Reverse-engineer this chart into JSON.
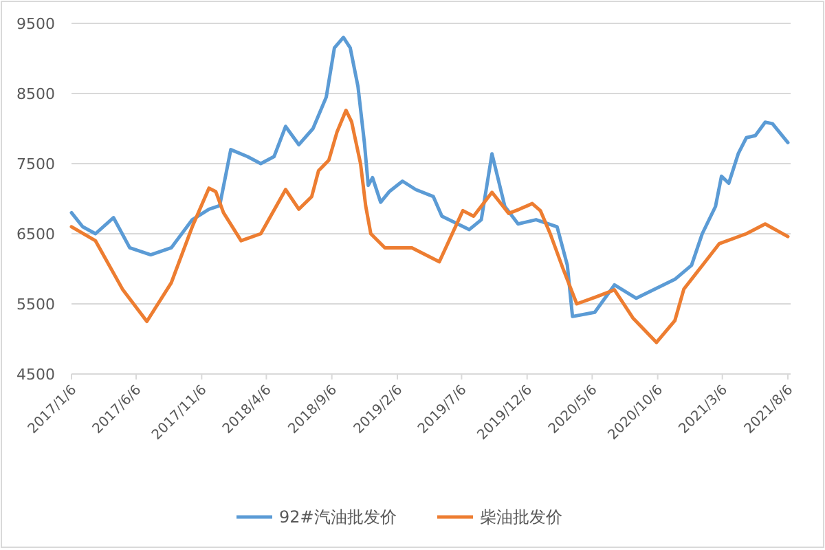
{
  "chart_data": {
    "type": "line",
    "ylim": [
      4500,
      9500
    ],
    "yticks": [
      4500,
      5500,
      6500,
      7500,
      8500,
      9500
    ],
    "xlim": [
      "2017-01-06",
      "2021-08-06"
    ],
    "xticks": [
      {
        "value": "2017-01-06",
        "label": "2017/1/6"
      },
      {
        "value": "2017-06-06",
        "label": "2017/6/6"
      },
      {
        "value": "2017-11-06",
        "label": "2017/11/6"
      },
      {
        "value": "2018-04-06",
        "label": "2018/4/6"
      },
      {
        "value": "2018-09-06",
        "label": "2018/9/6"
      },
      {
        "value": "2019-02-06",
        "label": "2019/2/6"
      },
      {
        "value": "2019-07-06",
        "label": "2019/7/6"
      },
      {
        "value": "2019-12-06",
        "label": "2019/12/6"
      },
      {
        "value": "2020-05-06",
        "label": "2020/5/6"
      },
      {
        "value": "2020-10-06",
        "label": "2020/10/6"
      },
      {
        "value": "2021-03-06",
        "label": "2021/3/6"
      },
      {
        "value": "2021-08-06",
        "label": "2021/8/6"
      }
    ],
    "grid": "y",
    "legend": "bottom",
    "series": [
      {
        "name": "92#汽油批发价",
        "color": "#5b9bd5",
        "x": [
          "2017-01-06",
          "2017-02-01",
          "2017-03-03",
          "2017-04-14",
          "2017-05-22",
          "2017-07-10",
          "2017-08-27",
          "2017-10-15",
          "2017-11-23",
          "2017-12-18",
          "2018-01-13",
          "2018-02-21",
          "2018-03-24",
          "2018-04-24",
          "2018-05-21",
          "2018-06-21",
          "2018-07-24",
          "2018-08-24",
          "2018-09-12",
          "2018-10-03",
          "2018-10-19",
          "2018-11-06",
          "2018-11-21",
          "2018-11-30",
          "2018-12-10",
          "2018-12-29",
          "2019-01-18",
          "2019-02-18",
          "2019-03-21",
          "2019-05-01",
          "2019-05-21",
          "2019-06-27",
          "2019-07-24",
          "2019-08-21",
          "2019-09-15",
          "2019-10-15",
          "2019-11-15",
          "2019-12-27",
          "2020-02-14",
          "2020-03-09",
          "2020-03-21",
          "2020-05-12",
          "2020-06-27",
          "2020-08-17",
          "2020-11-15",
          "2020-12-24",
          "2021-01-18",
          "2021-02-18",
          "2021-03-04",
          "2021-03-21",
          "2021-04-12",
          "2021-05-01",
          "2021-05-22",
          "2021-06-14",
          "2021-07-01",
          "2021-07-17",
          "2021-08-06"
        ],
        "values": [
          6800,
          6600,
          6500,
          6730,
          6300,
          6200,
          6300,
          6700,
          6850,
          6900,
          7700,
          7600,
          7500,
          7600,
          8030,
          7770,
          8000,
          8450,
          9150,
          9300,
          9150,
          8600,
          7800,
          7190,
          7300,
          6950,
          7100,
          7250,
          7130,
          7030,
          6750,
          6640,
          6560,
          6700,
          7640,
          6890,
          6640,
          6700,
          6600,
          6050,
          5320,
          5380,
          5770,
          5580,
          5850,
          6050,
          6500,
          6890,
          7320,
          7220,
          7640,
          7870,
          7900,
          8090,
          8070,
          7950,
          7800
        ]
      },
      {
        "name": "柴油批发价",
        "color": "#ed7d31",
        "x": [
          "2017-01-06",
          "2017-03-03",
          "2017-05-06",
          "2017-07-01",
          "2017-08-27",
          "2017-10-15",
          "2017-11-23",
          "2017-12-09",
          "2017-12-27",
          "2018-02-06",
          "2018-03-24",
          "2018-05-21",
          "2018-06-21",
          "2018-07-21",
          "2018-08-06",
          "2018-08-30",
          "2018-09-18",
          "2018-10-09",
          "2018-10-22",
          "2018-11-12",
          "2018-11-24",
          "2018-12-06",
          "2019-01-08",
          "2019-03-12",
          "2019-05-15",
          "2019-07-09",
          "2019-08-03",
          "2019-09-15",
          "2019-10-24",
          "2019-11-18",
          "2019-12-18",
          "2020-01-06",
          "2020-01-29",
          "2020-02-28",
          "2020-03-31",
          "2020-05-15",
          "2020-06-27",
          "2020-08-09",
          "2020-10-03",
          "2020-11-15",
          "2020-12-06",
          "2021-02-27",
          "2021-05-01",
          "2021-06-14",
          "2021-08-06"
        ],
        "values": [
          6600,
          6400,
          5700,
          5250,
          5800,
          6600,
          7150,
          7100,
          6800,
          6400,
          6500,
          7130,
          6850,
          7030,
          7400,
          7550,
          7950,
          8260,
          8100,
          7500,
          6900,
          6500,
          6300,
          6300,
          6100,
          6830,
          6750,
          7090,
          6790,
          6850,
          6930,
          6830,
          6500,
          6000,
          5500,
          5600,
          5700,
          5300,
          4950,
          5260,
          5710,
          6360,
          6500,
          6640,
          6460
        ]
      }
    ]
  }
}
